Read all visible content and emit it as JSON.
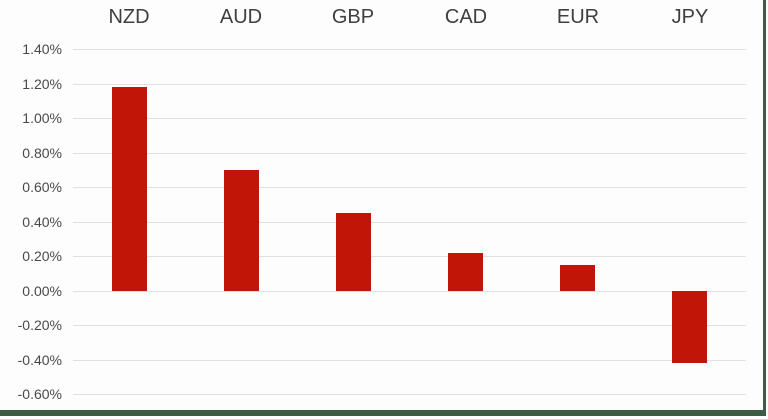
{
  "chart_data": {
    "type": "bar",
    "title": "",
    "xlabel": "",
    "ylabel": "",
    "categories": [
      "NZD",
      "AUD",
      "GBP",
      "CAD",
      "EUR",
      "JPY"
    ],
    "values": [
      1.18,
      0.7,
      0.45,
      0.22,
      0.15,
      -0.42
    ],
    "value_unit": "%",
    "ylim": [
      -0.6,
      1.4
    ],
    "ytick_step": 0.2,
    "ytick_labels": [
      "1.40%",
      "1.20%",
      "1.00%",
      "0.80%",
      "0.60%",
      "0.40%",
      "0.20%",
      "0.00%",
      "-0.20%",
      "-0.40%",
      "-0.60%"
    ],
    "grid": true,
    "legend": "none",
    "category_labels_position": "top",
    "colors": {
      "bar": "#c11508",
      "category_label": "#3f3f3f",
      "tick_label": "#494949",
      "gridline": "#e0e0e0",
      "frame_border": "#3d5c46",
      "background": "#fdfdfd"
    }
  }
}
